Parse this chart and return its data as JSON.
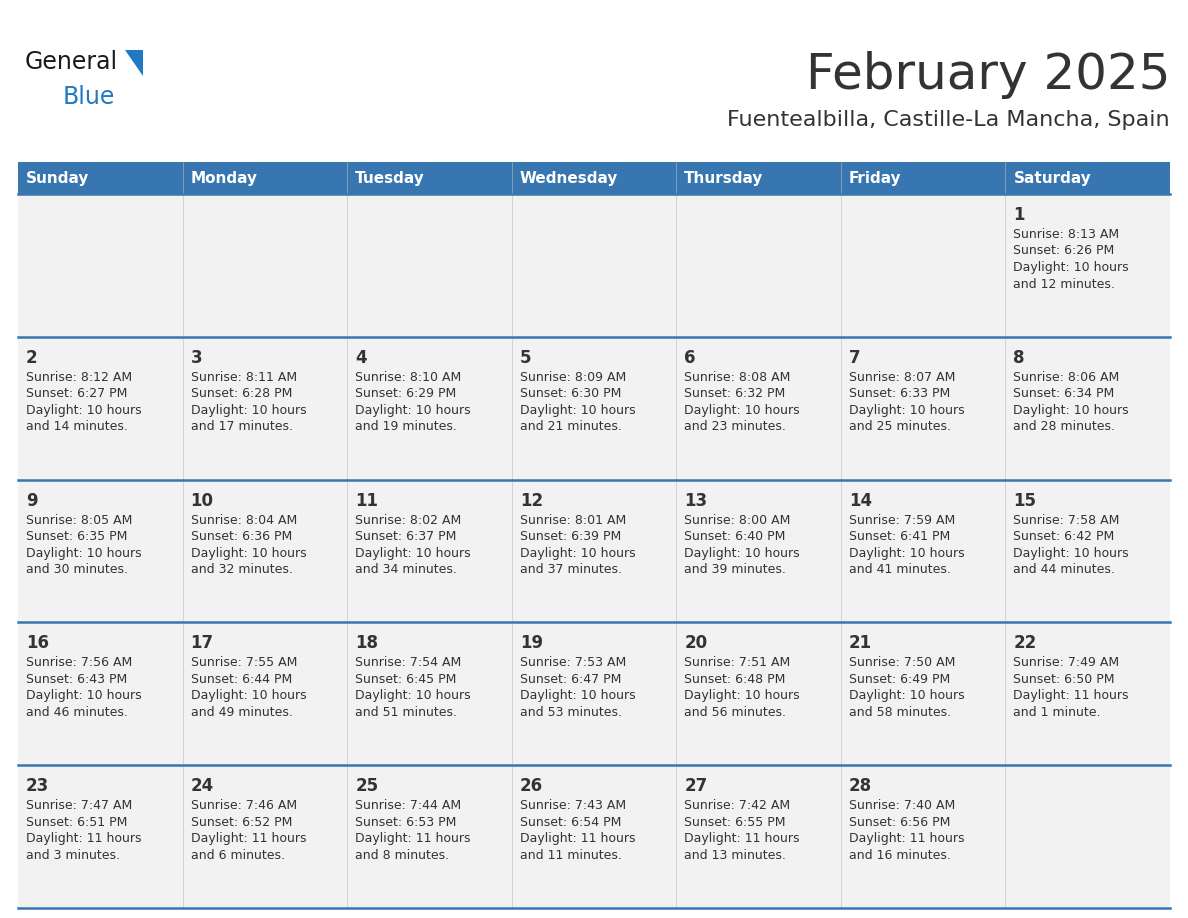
{
  "title": "February 2025",
  "subtitle": "Fuentealbilla, Castille-La Mancha, Spain",
  "header_bg": "#3776b0",
  "header_text": "#ffffff",
  "row_bg": "#f2f2f2",
  "divider_color": "#3776b0",
  "text_color": "#333333",
  "days_of_week": [
    "Sunday",
    "Monday",
    "Tuesday",
    "Wednesday",
    "Thursday",
    "Friday",
    "Saturday"
  ],
  "logo_general_color": "#1a1a1a",
  "logo_blue_color": "#2178c4",
  "logo_triangle_color": "#2178c4",
  "weeks": [
    [
      {
        "day": null,
        "sunrise": null,
        "sunset": null,
        "daylight": null
      },
      {
        "day": null,
        "sunrise": null,
        "sunset": null,
        "daylight": null
      },
      {
        "day": null,
        "sunrise": null,
        "sunset": null,
        "daylight": null
      },
      {
        "day": null,
        "sunrise": null,
        "sunset": null,
        "daylight": null
      },
      {
        "day": null,
        "sunrise": null,
        "sunset": null,
        "daylight": null
      },
      {
        "day": null,
        "sunrise": null,
        "sunset": null,
        "daylight": null
      },
      {
        "day": 1,
        "sunrise": "8:13 AM",
        "sunset": "6:26 PM",
        "daylight": "10 hours and 12 minutes."
      }
    ],
    [
      {
        "day": 2,
        "sunrise": "8:12 AM",
        "sunset": "6:27 PM",
        "daylight": "10 hours and 14 minutes."
      },
      {
        "day": 3,
        "sunrise": "8:11 AM",
        "sunset": "6:28 PM",
        "daylight": "10 hours and 17 minutes."
      },
      {
        "day": 4,
        "sunrise": "8:10 AM",
        "sunset": "6:29 PM",
        "daylight": "10 hours and 19 minutes."
      },
      {
        "day": 5,
        "sunrise": "8:09 AM",
        "sunset": "6:30 PM",
        "daylight": "10 hours and 21 minutes."
      },
      {
        "day": 6,
        "sunrise": "8:08 AM",
        "sunset": "6:32 PM",
        "daylight": "10 hours and 23 minutes."
      },
      {
        "day": 7,
        "sunrise": "8:07 AM",
        "sunset": "6:33 PM",
        "daylight": "10 hours and 25 minutes."
      },
      {
        "day": 8,
        "sunrise": "8:06 AM",
        "sunset": "6:34 PM",
        "daylight": "10 hours and 28 minutes."
      }
    ],
    [
      {
        "day": 9,
        "sunrise": "8:05 AM",
        "sunset": "6:35 PM",
        "daylight": "10 hours and 30 minutes."
      },
      {
        "day": 10,
        "sunrise": "8:04 AM",
        "sunset": "6:36 PM",
        "daylight": "10 hours and 32 minutes."
      },
      {
        "day": 11,
        "sunrise": "8:02 AM",
        "sunset": "6:37 PM",
        "daylight": "10 hours and 34 minutes."
      },
      {
        "day": 12,
        "sunrise": "8:01 AM",
        "sunset": "6:39 PM",
        "daylight": "10 hours and 37 minutes."
      },
      {
        "day": 13,
        "sunrise": "8:00 AM",
        "sunset": "6:40 PM",
        "daylight": "10 hours and 39 minutes."
      },
      {
        "day": 14,
        "sunrise": "7:59 AM",
        "sunset": "6:41 PM",
        "daylight": "10 hours and 41 minutes."
      },
      {
        "day": 15,
        "sunrise": "7:58 AM",
        "sunset": "6:42 PM",
        "daylight": "10 hours and 44 minutes."
      }
    ],
    [
      {
        "day": 16,
        "sunrise": "7:56 AM",
        "sunset": "6:43 PM",
        "daylight": "10 hours and 46 minutes."
      },
      {
        "day": 17,
        "sunrise": "7:55 AM",
        "sunset": "6:44 PM",
        "daylight": "10 hours and 49 minutes."
      },
      {
        "day": 18,
        "sunrise": "7:54 AM",
        "sunset": "6:45 PM",
        "daylight": "10 hours and 51 minutes."
      },
      {
        "day": 19,
        "sunrise": "7:53 AM",
        "sunset": "6:47 PM",
        "daylight": "10 hours and 53 minutes."
      },
      {
        "day": 20,
        "sunrise": "7:51 AM",
        "sunset": "6:48 PM",
        "daylight": "10 hours and 56 minutes."
      },
      {
        "day": 21,
        "sunrise": "7:50 AM",
        "sunset": "6:49 PM",
        "daylight": "10 hours and 58 minutes."
      },
      {
        "day": 22,
        "sunrise": "7:49 AM",
        "sunset": "6:50 PM",
        "daylight": "11 hours and 1 minute."
      }
    ],
    [
      {
        "day": 23,
        "sunrise": "7:47 AM",
        "sunset": "6:51 PM",
        "daylight": "11 hours and 3 minutes."
      },
      {
        "day": 24,
        "sunrise": "7:46 AM",
        "sunset": "6:52 PM",
        "daylight": "11 hours and 6 minutes."
      },
      {
        "day": 25,
        "sunrise": "7:44 AM",
        "sunset": "6:53 PM",
        "daylight": "11 hours and 8 minutes."
      },
      {
        "day": 26,
        "sunrise": "7:43 AM",
        "sunset": "6:54 PM",
        "daylight": "11 hours and 11 minutes."
      },
      {
        "day": 27,
        "sunrise": "7:42 AM",
        "sunset": "6:55 PM",
        "daylight": "11 hours and 13 minutes."
      },
      {
        "day": 28,
        "sunrise": "7:40 AM",
        "sunset": "6:56 PM",
        "daylight": "11 hours and 16 minutes."
      },
      {
        "day": null,
        "sunrise": null,
        "sunset": null,
        "daylight": null
      }
    ]
  ]
}
